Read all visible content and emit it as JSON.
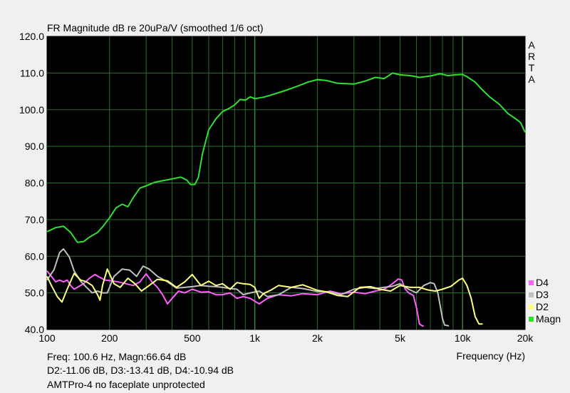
{
  "chart_data": {
    "type": "line",
    "title": "FR Magnitude dB re 20uPa/V (smoothed 1/6 oct)",
    "xlabel": "Frequency (Hz)",
    "ylabel": "",
    "xscale": "log",
    "xlim": [
      100,
      20000
    ],
    "ylim": [
      40,
      120
    ],
    "x_ticks": [
      100,
      200,
      500,
      1000,
      2000,
      5000,
      10000,
      20000
    ],
    "x_tick_labels": [
      "100",
      "200",
      "500",
      "1k",
      "2k",
      "5k",
      "10k",
      "20k"
    ],
    "y_ticks": [
      40,
      50,
      60,
      70,
      80,
      90,
      100,
      110,
      120
    ],
    "y_tick_labels": [
      "40.0",
      "50.0",
      "60.0",
      "70.0",
      "80.0",
      "90.0",
      "100.0",
      "110.0",
      "120.0"
    ],
    "grid": true,
    "background": "#000000",
    "grid_color": "#2e6b2e",
    "watermark": [
      "A",
      "R",
      "T",
      "A"
    ],
    "legend_position": "bottom-right",
    "series": [
      {
        "name": "Magn",
        "color": "#30e030",
        "points": [
          [
            100,
            66.7
          ],
          [
            110,
            67.8
          ],
          [
            120,
            68.2
          ],
          [
            130,
            66.5
          ],
          [
            140,
            63.8
          ],
          [
            150,
            64
          ],
          [
            160,
            65.2
          ],
          [
            175,
            66.5
          ],
          [
            185,
            68
          ],
          [
            200,
            70.5
          ],
          [
            215,
            73.2
          ],
          [
            230,
            74.2
          ],
          [
            245,
            73.5
          ],
          [
            260,
            76
          ],
          [
            280,
            78.6
          ],
          [
            300,
            79.2
          ],
          [
            330,
            80.2
          ],
          [
            360,
            80.6
          ],
          [
            400,
            81.1
          ],
          [
            440,
            81.6
          ],
          [
            470,
            80.8
          ],
          [
            490,
            79.6
          ],
          [
            515,
            79.6
          ],
          [
            535,
            81.5
          ],
          [
            560,
            88
          ],
          [
            600,
            94.5
          ],
          [
            650,
            97.5
          ],
          [
            700,
            99.5
          ],
          [
            750,
            100.3
          ],
          [
            800,
            101.3
          ],
          [
            850,
            102.8
          ],
          [
            900,
            102.6
          ],
          [
            950,
            103.5
          ],
          [
            1000,
            103
          ],
          [
            1100,
            103.4
          ],
          [
            1200,
            104
          ],
          [
            1400,
            105.2
          ],
          [
            1600,
            106.4
          ],
          [
            1800,
            107.5
          ],
          [
            2000,
            108.2
          ],
          [
            2200,
            108
          ],
          [
            2500,
            107.2
          ],
          [
            3000,
            107
          ],
          [
            3400,
            107.8
          ],
          [
            3800,
            108.8
          ],
          [
            4200,
            108.5
          ],
          [
            4600,
            110
          ],
          [
            5000,
            109.5
          ],
          [
            5600,
            109.3
          ],
          [
            6200,
            108.8
          ],
          [
            7000,
            109.2
          ],
          [
            7800,
            109.8
          ],
          [
            8500,
            109.3
          ],
          [
            9200,
            109.5
          ],
          [
            10000,
            109.6
          ],
          [
            10500,
            109
          ],
          [
            11500,
            107.5
          ],
          [
            12500,
            105.3
          ],
          [
            13500,
            103.5
          ],
          [
            15000,
            101.5
          ],
          [
            16500,
            99
          ],
          [
            18000,
            97.5
          ],
          [
            19000,
            96.5
          ],
          [
            20000,
            93.8
          ]
        ]
      },
      {
        "name": "D2",
        "color": "#ffff80",
        "points": [
          [
            100,
            54.5
          ],
          [
            105,
            52
          ],
          [
            112,
            49
          ],
          [
            118,
            47.5
          ],
          [
            125,
            51
          ],
          [
            135,
            55.3
          ],
          [
            145,
            53.5
          ],
          [
            155,
            53
          ],
          [
            165,
            52
          ],
          [
            175,
            49.5
          ],
          [
            180,
            48
          ],
          [
            185,
            52
          ],
          [
            195,
            56.5
          ],
          [
            210,
            52.5
          ],
          [
            225,
            51.5
          ],
          [
            245,
            54
          ],
          [
            265,
            52.5
          ],
          [
            285,
            50.5
          ],
          [
            310,
            52
          ],
          [
            340,
            53.7
          ],
          [
            380,
            53.3
          ],
          [
            420,
            51.5
          ],
          [
            460,
            53
          ],
          [
            500,
            55
          ],
          [
            550,
            52
          ],
          [
            600,
            53.2
          ],
          [
            650,
            52
          ],
          [
            700,
            52.5
          ],
          [
            760,
            51
          ],
          [
            820,
            52.8
          ],
          [
            880,
            52.5
          ],
          [
            950,
            52.3
          ],
          [
            1000,
            51.5
          ],
          [
            1050,
            48.5
          ],
          [
            1100,
            49.8
          ],
          [
            1200,
            50.8
          ],
          [
            1300,
            52
          ],
          [
            1500,
            51.5
          ],
          [
            1700,
            52.2
          ],
          [
            2000,
            50.7
          ],
          [
            2200,
            50.3
          ],
          [
            2500,
            49.3
          ],
          [
            2800,
            49
          ],
          [
            3200,
            51.5
          ],
          [
            3600,
            51.7
          ],
          [
            4000,
            51
          ],
          [
            4500,
            50.5
          ],
          [
            5000,
            52
          ],
          [
            5600,
            51.5
          ],
          [
            6200,
            51.5
          ],
          [
            6800,
            50.8
          ],
          [
            7400,
            50.5
          ],
          [
            8000,
            51
          ],
          [
            8800,
            51.8
          ],
          [
            9600,
            53.5
          ],
          [
            10000,
            54
          ],
          [
            10500,
            52
          ],
          [
            11000,
            48.5
          ],
          [
            11500,
            43.5
          ],
          [
            12000,
            41.5
          ],
          [
            12500,
            41.5
          ]
        ]
      },
      {
        "name": "D3",
        "color": "#c0c0c0",
        "points": [
          [
            100,
            53.5
          ],
          [
            108,
            56.3
          ],
          [
            115,
            61
          ],
          [
            120,
            62
          ],
          [
            128,
            59.8
          ],
          [
            135,
            56
          ],
          [
            145,
            53.2
          ],
          [
            155,
            51.5
          ],
          [
            165,
            50
          ],
          [
            175,
            50.5
          ],
          [
            185,
            50
          ],
          [
            195,
            50
          ],
          [
            210,
            54.5
          ],
          [
            230,
            56.5
          ],
          [
            250,
            56.2
          ],
          [
            270,
            54.5
          ],
          [
            290,
            57.3
          ],
          [
            310,
            56.5
          ],
          [
            340,
            54.5
          ],
          [
            380,
            53
          ],
          [
            420,
            51.3
          ],
          [
            460,
            51.5
          ],
          [
            500,
            51.7
          ],
          [
            550,
            52
          ],
          [
            600,
            51.8
          ],
          [
            650,
            51.7
          ],
          [
            700,
            51.5
          ],
          [
            760,
            51.2
          ],
          [
            820,
            51
          ],
          [
            880,
            49.5
          ],
          [
            950,
            50
          ],
          [
            1050,
            50.5
          ],
          [
            1150,
            49
          ],
          [
            1300,
            49.5
          ],
          [
            1500,
            51.5
          ],
          [
            1700,
            51.2
          ],
          [
            2000,
            50.4
          ],
          [
            2300,
            50.3
          ],
          [
            2600,
            49.5
          ],
          [
            3000,
            51
          ],
          [
            3400,
            51.5
          ],
          [
            3800,
            51.2
          ],
          [
            4200,
            51.5
          ],
          [
            4600,
            51.8
          ],
          [
            5000,
            52.5
          ],
          [
            5500,
            51
          ],
          [
            6000,
            50
          ],
          [
            6500,
            52
          ],
          [
            7000,
            52.8
          ],
          [
            7300,
            52.5
          ],
          [
            7600,
            50
          ],
          [
            7800,
            46.5
          ],
          [
            8000,
            43
          ],
          [
            8200,
            41.2
          ],
          [
            8600,
            41
          ]
        ]
      },
      {
        "name": "D4",
        "color": "#ff60ff",
        "points": [
          [
            100,
            56
          ],
          [
            105,
            54.5
          ],
          [
            110,
            53
          ],
          [
            115,
            53.5
          ],
          [
            120,
            53
          ],
          [
            125,
            53.5
          ],
          [
            130,
            52
          ],
          [
            135,
            51
          ],
          [
            140,
            51.5
          ],
          [
            150,
            52.5
          ],
          [
            160,
            54
          ],
          [
            170,
            55
          ],
          [
            180,
            54.2
          ],
          [
            190,
            53.5
          ],
          [
            205,
            53.3
          ],
          [
            220,
            53
          ],
          [
            240,
            52.5
          ],
          [
            260,
            52
          ],
          [
            280,
            53
          ],
          [
            300,
            55.2
          ],
          [
            320,
            53
          ],
          [
            340,
            51.5
          ],
          [
            360,
            49.5
          ],
          [
            380,
            47
          ],
          [
            400,
            48.5
          ],
          [
            430,
            50.5
          ],
          [
            460,
            50
          ],
          [
            500,
            51
          ],
          [
            550,
            50.2
          ],
          [
            600,
            50.3
          ],
          [
            650,
            49.5
          ],
          [
            700,
            49.5
          ],
          [
            760,
            50
          ],
          [
            820,
            48.5
          ],
          [
            880,
            49
          ],
          [
            950,
            48.5
          ],
          [
            1050,
            47
          ],
          [
            1150,
            48.5
          ],
          [
            1300,
            49.5
          ],
          [
            1500,
            49.2
          ],
          [
            1700,
            49.8
          ],
          [
            2000,
            49.5
          ],
          [
            2300,
            50.5
          ],
          [
            2600,
            49.8
          ],
          [
            3000,
            50.2
          ],
          [
            3400,
            49.8
          ],
          [
            3800,
            50.5
          ],
          [
            4200,
            51
          ],
          [
            4600,
            52.5
          ],
          [
            4900,
            53.8
          ],
          [
            5100,
            53.5
          ],
          [
            5300,
            51
          ],
          [
            5500,
            50
          ],
          [
            5800,
            49.3
          ],
          [
            6000,
            46
          ],
          [
            6200,
            41.5
          ],
          [
            6400,
            41
          ],
          [
            6500,
            41
          ]
        ]
      }
    ]
  },
  "readouts": {
    "cursor": "Freq: 100.6 Hz, Magn:66.64 dB",
    "deltas": "D2:-11.06 dB, D3:-13.41 dB, D4:-10.94 dB",
    "note": "AMTPro-4 no faceplate unprotected"
  }
}
